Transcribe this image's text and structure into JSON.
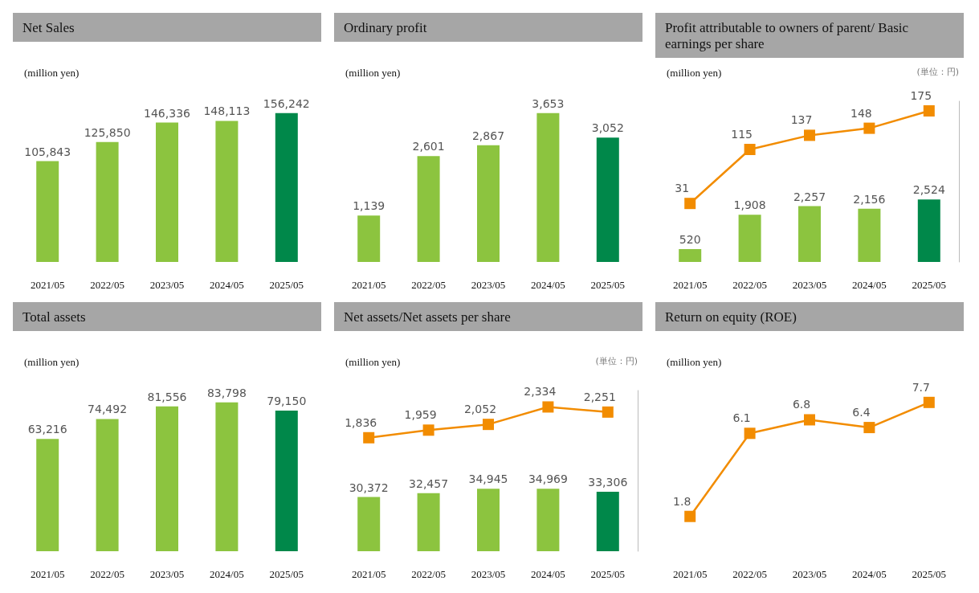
{
  "chart_data": [
    {
      "type": "bar",
      "title": "Net Sales",
      "subtitle": "(million yen)",
      "categories": [
        "2021/05",
        "2022/05",
        "2023/05",
        "2024/05",
        "2025/05"
      ],
      "tick_labels": "x",
      "series": [
        {
          "colors": [
            "#8cc43f",
            "#8cc43f",
            "#8cc43f",
            "#8cc43f",
            "#00884a"
          ],
          "values": [
            105843,
            125850,
            146336,
            148113,
            156242
          ],
          "value_labels": [
            "105,843",
            "125,850",
            "146,336",
            "148,113",
            "156,242"
          ]
        }
      ]
    },
    {
      "type": "bar",
      "title": "Ordinary profit",
      "subtitle": "(million yen)",
      "categories": [
        "2021/05",
        "2022/05",
        "2023/05",
        "2024/05",
        "2025/05"
      ],
      "tick_labels": "x",
      "series": [
        {
          "colors": [
            "#8cc43f",
            "#8cc43f",
            "#8cc43f",
            "#8cc43f",
            "#00884a"
          ],
          "values": [
            1139,
            2601,
            2867,
            3653,
            3052
          ],
          "value_labels": [
            "1,139",
            "2,601",
            "2,867",
            "3,653",
            "3,052"
          ]
        }
      ]
    },
    {
      "type": "bar",
      "title": "Profit attributable to owners of parent/ Basic earnings per share",
      "subtitle": "(million yen)",
      "annotations": [
        "(単位：円)"
      ],
      "categories": [
        "2021/05",
        "2022/05",
        "2023/05",
        "2024/05",
        "2025/05"
      ],
      "ylim": [
        0,
        6500
      ],
      "y2lim": [
        -60,
        190
      ],
      "tick_labels": "x",
      "marker": "square",
      "series": [
        {
          "colors": [
            "#8cc43f",
            "#8cc43f",
            "#8cc43f",
            "#8cc43f",
            "#00884a"
          ],
          "values": [
            520,
            1908,
            2257,
            2156,
            2524
          ],
          "value_labels": [
            "520",
            "1,908",
            "2,257",
            "2,156",
            "2,524"
          ]
        },
        {
          "type": "line",
          "axis": "y2",
          "color": "#f28c00",
          "values": [
            31,
            115,
            137,
            148,
            175
          ],
          "value_labels": [
            "31",
            "115",
            "137",
            "148",
            "175"
          ]
        }
      ]
    },
    {
      "type": "bar",
      "title": "Total assets",
      "subtitle": "(million yen)",
      "categories": [
        "2021/05",
        "2022/05",
        "2023/05",
        "2024/05",
        "2025/05"
      ],
      "tick_labels": "x",
      "series": [
        {
          "colors": [
            "#8cc43f",
            "#8cc43f",
            "#8cc43f",
            "#8cc43f",
            "#00884a"
          ],
          "values": [
            63216,
            74492,
            81556,
            83798,
            79150
          ],
          "value_labels": [
            "63,216",
            "74,492",
            "81,556",
            "83,798",
            "79,150"
          ]
        }
      ]
    },
    {
      "type": "bar",
      "title": "Net assets/Net assets per share",
      "subtitle": "(million yen)",
      "annotations": [
        "(単位：円)"
      ],
      "categories": [
        "2021/05",
        "2022/05",
        "2023/05",
        "2024/05",
        "2025/05"
      ],
      "ylim": [
        0,
        90000
      ],
      "y2lim": [
        0,
        2600
      ],
      "tick_labels": "x",
      "marker": "square",
      "series": [
        {
          "colors": [
            "#8cc43f",
            "#8cc43f",
            "#8cc43f",
            "#8cc43f",
            "#00884a"
          ],
          "values": [
            30372,
            32457,
            34945,
            34969,
            33306
          ],
          "value_labels": [
            "30,372",
            "32,457",
            "34,945",
            "34,969",
            "33,306"
          ]
        },
        {
          "type": "line",
          "axis": "y2",
          "color": "#f28c00",
          "values": [
            1836,
            1959,
            2052,
            2334,
            2251
          ],
          "value_labels": [
            "1,836",
            "1,959",
            "2,052",
            "2,334",
            "2,251"
          ]
        }
      ]
    },
    {
      "type": "line",
      "title": "Return on equity (ROE)",
      "subtitle": "(million yen)",
      "categories": [
        "2021/05",
        "2022/05",
        "2023/05",
        "2024/05",
        "2025/05"
      ],
      "tick_labels": "x",
      "marker": "square",
      "series": [
        {
          "color": "#f28c00",
          "values": [
            1.8,
            6.1,
            6.8,
            6.4,
            7.7
          ],
          "value_labels": [
            "1.8",
            "6.1",
            "6.8",
            "6.4",
            "7.7"
          ]
        }
      ]
    }
  ]
}
